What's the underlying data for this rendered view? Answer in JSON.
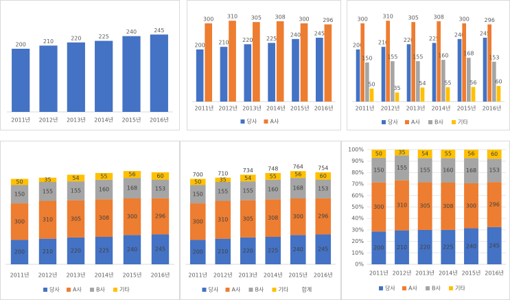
{
  "chart_data": [
    {
      "type": "bar",
      "categories": [
        "2011년",
        "2012년",
        "2013년",
        "2014년",
        "2015년",
        "2016년"
      ],
      "series": [
        {
          "name": "당사",
          "color": "#4472c4",
          "values": [
            200,
            210,
            220,
            225,
            240,
            245
          ]
        }
      ],
      "ylim": [
        0,
        300
      ],
      "legend": false
    },
    {
      "type": "bar",
      "categories": [
        "2011년",
        "2012년",
        "2013년",
        "2014년",
        "2015년",
        "2016년"
      ],
      "series": [
        {
          "name": "당사",
          "color": "#4472c4",
          "values": [
            200,
            210,
            220,
            225,
            240,
            245
          ]
        },
        {
          "name": "A사",
          "color": "#ed7d31",
          "values": [
            300,
            310,
            305,
            308,
            300,
            296
          ]
        }
      ],
      "ylim": [
        0,
        350
      ],
      "legend": true
    },
    {
      "type": "bar",
      "categories": [
        "2011년",
        "2012년",
        "2013년",
        "2014년",
        "2015년",
        "2016년"
      ],
      "series": [
        {
          "name": "당사",
          "color": "#4472c4",
          "values": [
            200,
            210,
            220,
            225,
            240,
            245
          ]
        },
        {
          "name": "A사",
          "color": "#ed7d31",
          "values": [
            300,
            310,
            305,
            308,
            300,
            296
          ]
        },
        {
          "name": "B사",
          "color": "#a5a5a5",
          "values": [
            150,
            155,
            155,
            160,
            168,
            153
          ]
        },
        {
          "name": "기타",
          "color": "#ffc000",
          "values": [
            50,
            35,
            54,
            55,
            56,
            60
          ]
        }
      ],
      "ylim": [
        0,
        350
      ],
      "legend": true
    },
    {
      "type": "stacked",
      "categories": [
        "2011년",
        "2012년",
        "2013년",
        "2014년",
        "2015년",
        "2016년"
      ],
      "series": [
        {
          "name": "당사",
          "color": "#4472c4",
          "values": [
            200,
            210,
            220,
            225,
            240,
            245
          ]
        },
        {
          "name": "A사",
          "color": "#ed7d31",
          "values": [
            300,
            310,
            305,
            308,
            300,
            296
          ]
        },
        {
          "name": "B사",
          "color": "#a5a5a5",
          "values": [
            150,
            155,
            155,
            160,
            168,
            153
          ]
        },
        {
          "name": "기타",
          "color": "#ffc000",
          "values": [
            50,
            35,
            54,
            55,
            56,
            60
          ]
        }
      ],
      "ylim": [
        0,
        900
      ],
      "legend": true
    },
    {
      "type": "stacked",
      "categories": [
        "2011년",
        "2012년",
        "2013년",
        "2014년",
        "2015년",
        "2016년"
      ],
      "series": [
        {
          "name": "당사",
          "color": "#4472c4",
          "values": [
            200,
            210,
            220,
            225,
            240,
            245
          ]
        },
        {
          "name": "A사",
          "color": "#ed7d31",
          "values": [
            300,
            310,
            305,
            308,
            300,
            296
          ]
        },
        {
          "name": "B사",
          "color": "#a5a5a5",
          "values": [
            150,
            155,
            155,
            160,
            168,
            153
          ]
        },
        {
          "name": "기타",
          "color": "#ffc000",
          "values": [
            50,
            35,
            54,
            55,
            56,
            60
          ]
        }
      ],
      "total_name": "합계",
      "totals": [
        700,
        710,
        734,
        748,
        764,
        754
      ],
      "ylim": [
        0,
        900
      ],
      "legend": true
    },
    {
      "type": "stacked100",
      "categories": [
        "2011년",
        "2012년",
        "2013년",
        "2014년",
        "2015년",
        "2016년"
      ],
      "series": [
        {
          "name": "당사",
          "color": "#4472c4",
          "values": [
            200,
            210,
            220,
            225,
            240,
            245
          ]
        },
        {
          "name": "A사",
          "color": "#ed7d31",
          "values": [
            300,
            310,
            305,
            308,
            300,
            296
          ]
        },
        {
          "name": "B사",
          "color": "#a5a5a5",
          "values": [
            150,
            155,
            155,
            160,
            168,
            153
          ]
        },
        {
          "name": "기타",
          "color": "#ffc000",
          "values": [
            50,
            35,
            54,
            55,
            56,
            60
          ]
        }
      ],
      "ylim": [
        0,
        100
      ],
      "yticks": [
        {
          "value": 0,
          "label": "0%"
        },
        {
          "value": 10,
          "label": "10%"
        },
        {
          "value": 20,
          "label": "20%"
        },
        {
          "value": 30,
          "label": "30%"
        },
        {
          "value": 40,
          "label": "40%"
        },
        {
          "value": 50,
          "label": "50%"
        },
        {
          "value": 60,
          "label": "60%"
        },
        {
          "value": 70,
          "label": "70%"
        },
        {
          "value": 80,
          "label": "80%"
        },
        {
          "value": 90,
          "label": "90%"
        },
        {
          "value": 100,
          "label": "100%"
        }
      ],
      "grid": true,
      "legend": true
    }
  ]
}
